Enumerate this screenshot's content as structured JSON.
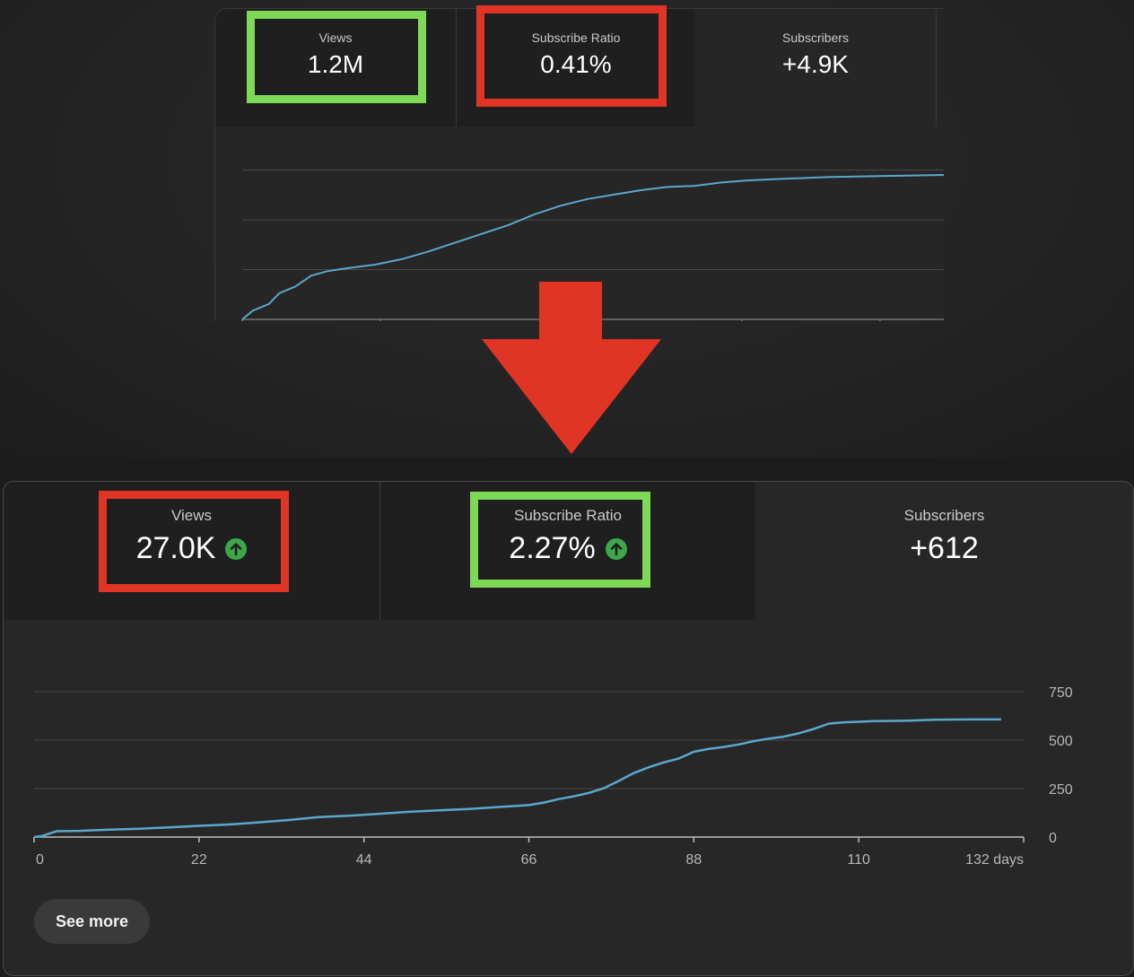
{
  "colors": {
    "line": "#5aa8cf",
    "highlight_green": "#7ed957",
    "highlight_red": "#e03524",
    "arrow": "#e03524",
    "up_icon": "#3da74a"
  },
  "top_panel": {
    "tabs": [
      {
        "label": "Views",
        "value": "1.2M",
        "highlight": "green"
      },
      {
        "label": "Subscribe Ratio",
        "value": "0.41%",
        "highlight": "red"
      },
      {
        "label": "Subscribers",
        "value": "+4.9K"
      }
    ]
  },
  "bottom_panel": {
    "tabs": [
      {
        "label": "Views",
        "value": "27.0K",
        "trend_icon": "arrow-up-circle-icon",
        "highlight": "red"
      },
      {
        "label": "Subscribe Ratio",
        "value": "2.27%",
        "trend_icon": "arrow-up-circle-icon",
        "highlight": "green"
      },
      {
        "label": "Subscribers",
        "value": "+612"
      }
    ],
    "see_more_label": "See more"
  },
  "chart_data": [
    {
      "type": "line",
      "title": "",
      "xlabel": "",
      "ylabel": "",
      "series": [
        {
          "points": [
            [
              0,
              0
            ],
            [
              2,
              8
            ],
            [
              5,
              14
            ],
            [
              7,
              24
            ],
            [
              10,
              30
            ],
            [
              13,
              40
            ],
            [
              16,
              44
            ],
            [
              20,
              47
            ],
            [
              25,
              50
            ],
            [
              30,
              55
            ],
            [
              35,
              62
            ],
            [
              40,
              70
            ],
            [
              45,
              78
            ],
            [
              50,
              86
            ],
            [
              55,
              96
            ],
            [
              60,
              104
            ],
            [
              65,
              110
            ],
            [
              70,
              114
            ],
            [
              75,
              118
            ],
            [
              80,
              121
            ],
            [
              85,
              122
            ],
            [
              90,
              125
            ],
            [
              95,
              127
            ],
            [
              100,
              128
            ],
            [
              110,
              130
            ],
            [
              120,
              131
            ],
            [
              132,
              132
            ]
          ]
        }
      ],
      "xlim": [
        0,
        132
      ],
      "ylim": [
        0,
        150
      ],
      "y_gridlines": 3,
      "x_ticks": [
        0,
        26,
        60,
        94,
        120
      ],
      "grid": true
    },
    {
      "type": "line",
      "title": "",
      "xlabel": "",
      "ylabel": "",
      "x_tick_labels": [
        "0",
        "22",
        "44",
        "66",
        "88",
        "110",
        "132 days"
      ],
      "x_ticks": [
        0,
        22,
        44,
        66,
        88,
        110,
        132
      ],
      "y_tick_labels": [
        "750",
        "500",
        "250",
        "0"
      ],
      "y_ticks": [
        750,
        500,
        250,
        0
      ],
      "xlim": [
        0,
        132
      ],
      "ylim": [
        0,
        750
      ],
      "grid": true,
      "y_axis_position": "right",
      "series": [
        {
          "points": [
            [
              0,
              0
            ],
            [
              1,
              5
            ],
            [
              3,
              30
            ],
            [
              6,
              32
            ],
            [
              10,
              38
            ],
            [
              14,
              43
            ],
            [
              18,
              50
            ],
            [
              22,
              58
            ],
            [
              26,
              65
            ],
            [
              30,
              76
            ],
            [
              34,
              88
            ],
            [
              38,
              103
            ],
            [
              42,
              110
            ],
            [
              46,
              120
            ],
            [
              50,
              130
            ],
            [
              54,
              138
            ],
            [
              58,
              145
            ],
            [
              62,
              155
            ],
            [
              66,
              165
            ],
            [
              68,
              178
            ],
            [
              70,
              196
            ],
            [
              72,
              210
            ],
            [
              74,
              228
            ],
            [
              75,
              240
            ],
            [
              76,
              252
            ],
            [
              78,
              290
            ],
            [
              80,
              330
            ],
            [
              82,
              360
            ],
            [
              84,
              385
            ],
            [
              86,
              405
            ],
            [
              88,
              440
            ],
            [
              90,
              455
            ],
            [
              92,
              465
            ],
            [
              94,
              478
            ],
            [
              96,
              495
            ],
            [
              98,
              508
            ],
            [
              100,
              518
            ],
            [
              102,
              535
            ],
            [
              104,
              558
            ],
            [
              106,
              585
            ],
            [
              108,
              592
            ],
            [
              110,
              595
            ],
            [
              112,
              598
            ],
            [
              116,
              600
            ],
            [
              120,
              605
            ],
            [
              125,
              607
            ],
            [
              129,
              607
            ]
          ]
        }
      ]
    }
  ]
}
